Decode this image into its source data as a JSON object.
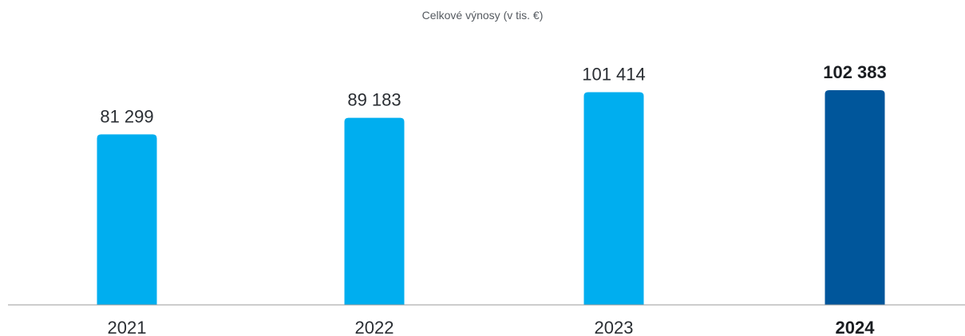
{
  "chart_data": {
    "type": "bar",
    "title": "Celkové výnosy (v tis. €)",
    "categories": [
      "2021",
      "2022",
      "2023",
      "2024"
    ],
    "values": [
      81299,
      89183,
      101414,
      102383
    ],
    "value_labels": [
      "81 299",
      "89 183",
      "101 414",
      "102 383"
    ],
    "highlighted_category": "2024",
    "colors": {
      "bar": "#00aeef",
      "bar_highlight": "#00569b",
      "axis": "#9a9a9a"
    },
    "xlabel": "",
    "ylabel": "",
    "ylim": [
      0,
      102383
    ],
    "grid": false,
    "legend": "none"
  }
}
